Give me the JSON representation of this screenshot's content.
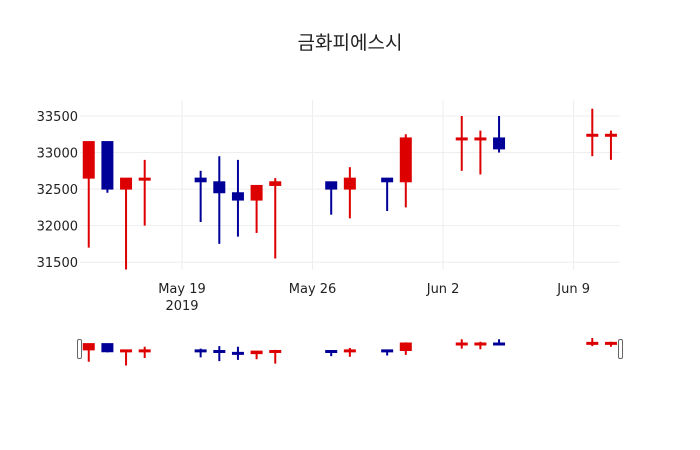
{
  "chart_data": {
    "type": "candlestick",
    "title": "금화피에스시",
    "xlabel": "",
    "ylabel": "",
    "ylim": [
      31300,
      33700
    ],
    "yticks": [
      31500,
      32000,
      32500,
      33000,
      33500
    ],
    "xticks": [
      {
        "label": "May 19",
        "sublabel": "2019",
        "date": "2019-05-19"
      },
      {
        "label": "May 26",
        "sublabel": "",
        "date": "2019-05-26"
      },
      {
        "label": "Jun 2",
        "sublabel": "",
        "date": "2019-06-02"
      },
      {
        "label": "Jun 9",
        "sublabel": "",
        "date": "2019-06-09"
      }
    ],
    "grid": true,
    "increasing_color": "#dd0000",
    "decreasing_color": "#000099",
    "rangeslider": true,
    "series": [
      {
        "date": "2019-05-14",
        "open": 32650,
        "high": 33150,
        "low": 31700,
        "close": 33150
      },
      {
        "date": "2019-05-15",
        "open": 33150,
        "high": 33150,
        "low": 32450,
        "close": 32500
      },
      {
        "date": "2019-05-16",
        "open": 32500,
        "high": 32650,
        "low": 31400,
        "close": 32650
      },
      {
        "date": "2019-05-17",
        "open": 32650,
        "high": 32900,
        "low": 32000,
        "close": 32650
      },
      {
        "date": "2019-05-20",
        "open": 32650,
        "high": 32750,
        "low": 32050,
        "close": 32600
      },
      {
        "date": "2019-05-21",
        "open": 32600,
        "high": 32950,
        "low": 31750,
        "close": 32450
      },
      {
        "date": "2019-05-22",
        "open": 32450,
        "high": 32900,
        "low": 31850,
        "close": 32350
      },
      {
        "date": "2019-05-23",
        "open": 32350,
        "high": 32550,
        "low": 31900,
        "close": 32550
      },
      {
        "date": "2019-05-24",
        "open": 32550,
        "high": 32650,
        "low": 31550,
        "close": 32600
      },
      {
        "date": "2019-05-27",
        "open": 32600,
        "high": 32600,
        "low": 32150,
        "close": 32500
      },
      {
        "date": "2019-05-28",
        "open": 32500,
        "high": 32800,
        "low": 32100,
        "close": 32650
      },
      {
        "date": "2019-05-30",
        "open": 32650,
        "high": 32650,
        "low": 32200,
        "close": 32600
      },
      {
        "date": "2019-05-31",
        "open": 32600,
        "high": 33250,
        "low": 32250,
        "close": 33200
      },
      {
        "date": "2019-06-03",
        "open": 33200,
        "high": 33500,
        "low": 32750,
        "close": 33200
      },
      {
        "date": "2019-06-04",
        "open": 33200,
        "high": 33300,
        "low": 32700,
        "close": 33200
      },
      {
        "date": "2019-06-05",
        "open": 33200,
        "high": 33500,
        "low": 33000,
        "close": 33050
      },
      {
        "date": "2019-06-10",
        "open": 33250,
        "high": 33600,
        "low": 32950,
        "close": 33250
      },
      {
        "date": "2019-06-11",
        "open": 33250,
        "high": 33300,
        "low": 32900,
        "close": 33250
      }
    ]
  }
}
